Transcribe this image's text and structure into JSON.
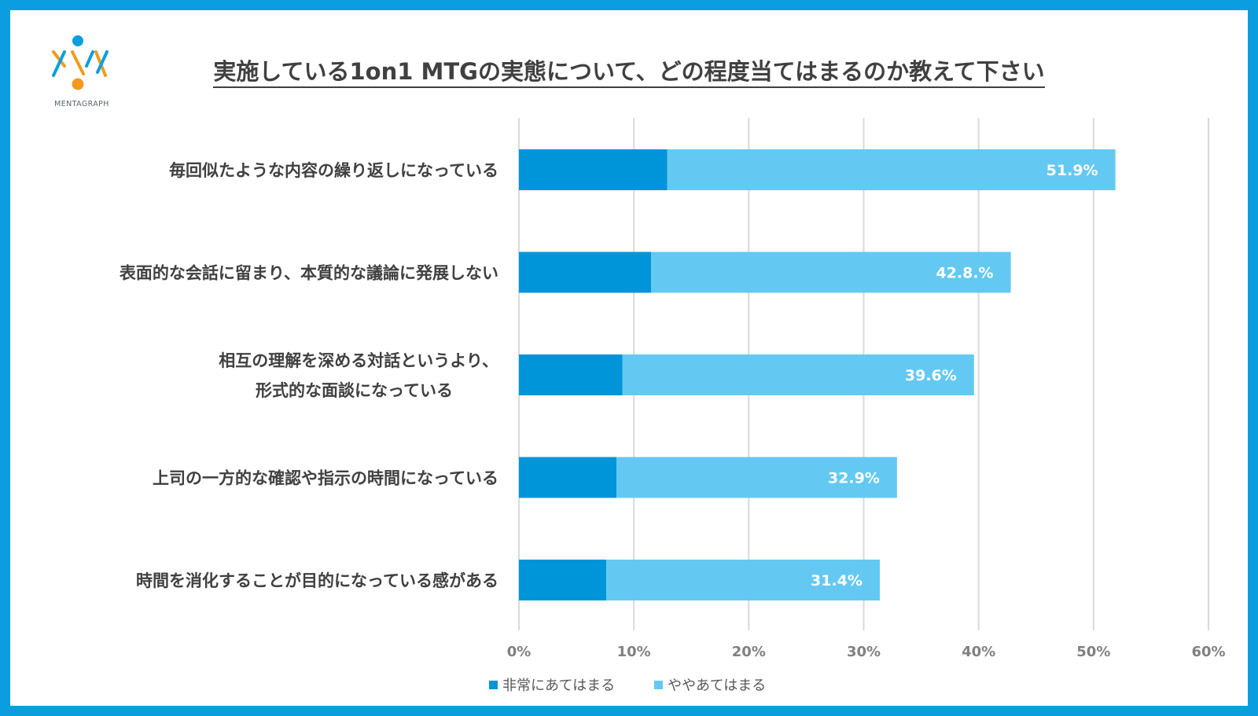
{
  "brand": {
    "logo_text": "MENTAGRAPH"
  },
  "title": "実施している1on1 MTGの実態について、どの程度当てはまるのか教えて下さい",
  "colors": {
    "frame": "#0a9ee0",
    "strong": "#0095d9",
    "somewhat": "#63c9f2",
    "grid": "#d9d9d9",
    "text": "#404040",
    "tick": "#808080"
  },
  "chart_data": {
    "type": "bar",
    "orientation": "horizontal",
    "stacked": true,
    "categories": [
      [
        "毎回似たような内容の繰り返しになっている"
      ],
      [
        "表面的な会話に留まり、本質的な議論に発展しない"
      ],
      [
        "相互の理解を深める対話というより、",
        "形式的な面談になっている"
      ],
      [
        "上司の一方的な確認や指示の時間になっている"
      ],
      [
        "時間を消化することが目的になっている感がある"
      ]
    ],
    "series": [
      {
        "name": "非常にあてはまる",
        "color": "#0095d9",
        "values": [
          12.9,
          11.5,
          9.0,
          8.5,
          7.6
        ]
      },
      {
        "name": "ややあてはまる",
        "color": "#63c9f2",
        "values": [
          39.0,
          31.3,
          30.6,
          24.4,
          23.8
        ]
      }
    ],
    "total_labels": [
      "51.9%",
      "42.8.%",
      "39.6%",
      "32.9%",
      "31.4%"
    ],
    "totals": [
      51.9,
      42.8,
      39.6,
      32.9,
      31.4
    ],
    "x_ticks": [
      "0%",
      "10%",
      "20%",
      "30%",
      "40%",
      "50%",
      "60%"
    ],
    "xlim": [
      0,
      60
    ],
    "grid": true,
    "legend_position": "bottom"
  }
}
